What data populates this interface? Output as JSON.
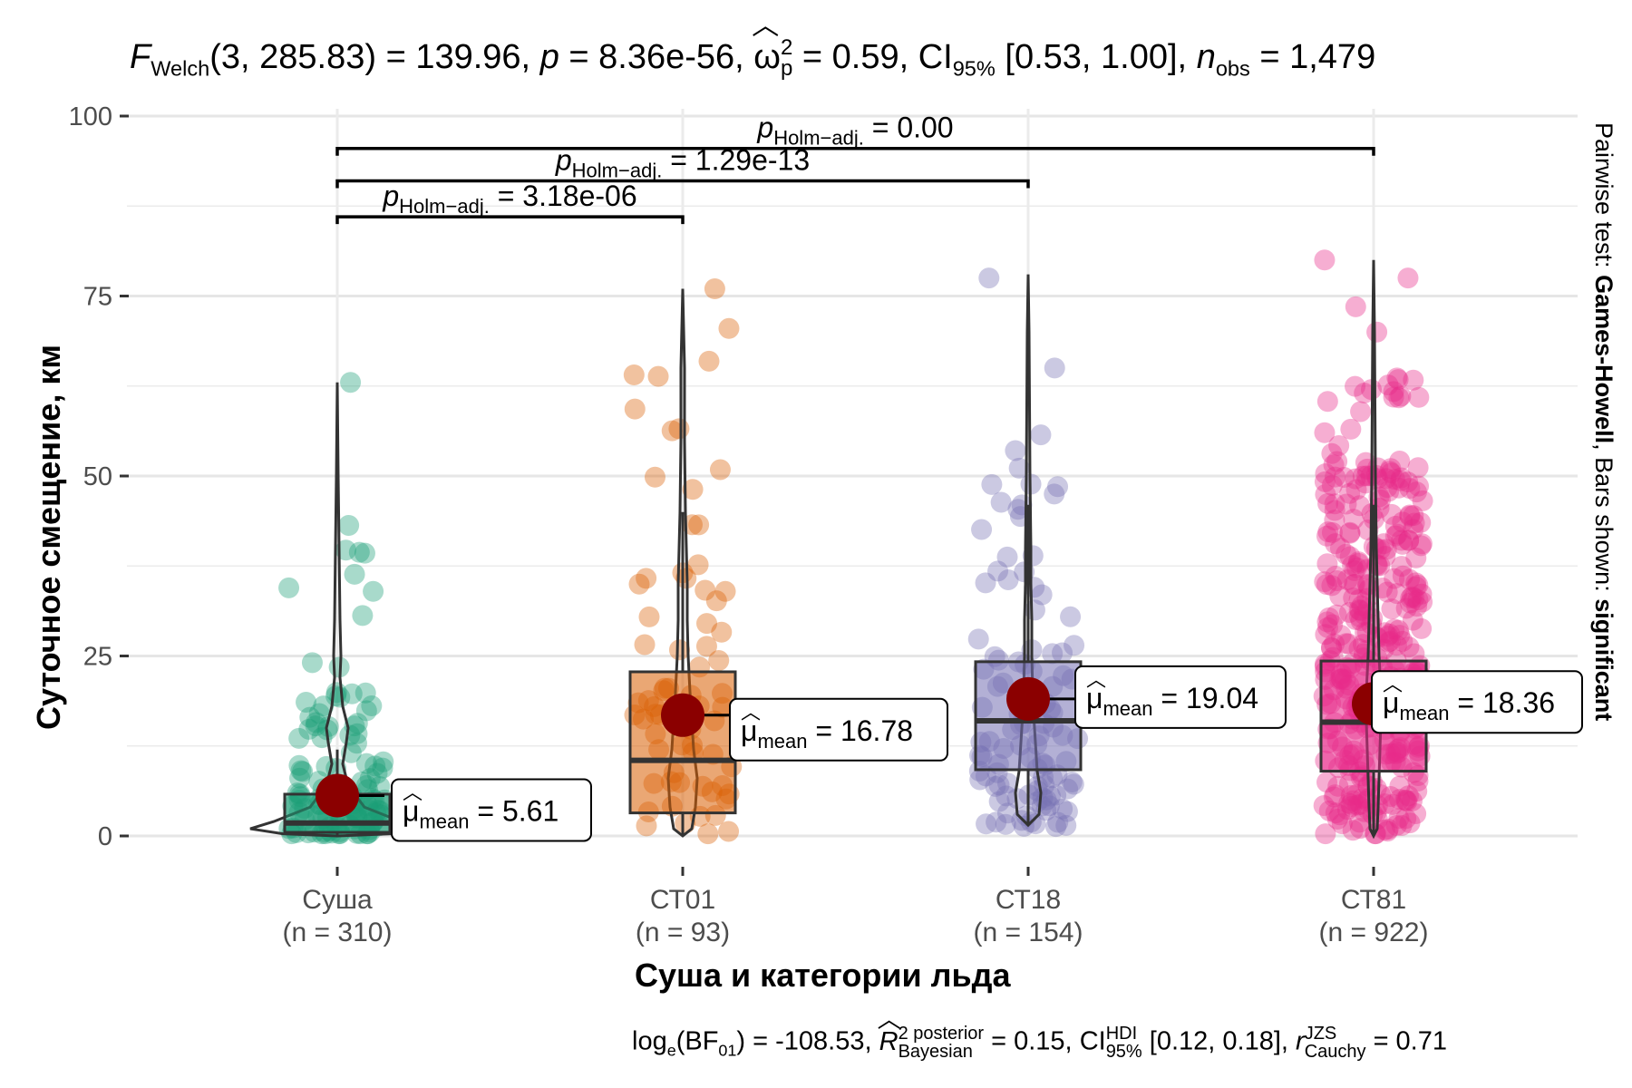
{
  "chart_data": {
    "type": "violin-box-scatter",
    "title": {
      "statistic": "F",
      "statistic_sub": "Welch",
      "df": "(3, 285.83)",
      "value": "= 139.96,",
      "p_label": "p",
      "p_value": "= 8.36e-56,",
      "effect_symbol": "ω",
      "effect_sup": "2",
      "effect_sub": "p",
      "effect_value": "= 0.59,",
      "ci_label": "CI",
      "ci_sub": "95%",
      "ci_value": "[0.53, 1.00],",
      "n_label": "n",
      "n_sub": "obs",
      "n_value": "= 1,479"
    },
    "caption": {
      "bf_label": "log",
      "bf_sub": "e",
      "bf_arg": "(BF",
      "bf_arg_sub": "01",
      "bf_value": ") = -108.53,",
      "r2_symbol": "R",
      "r2_sup": "2 posterior",
      "r2_sub": "Bayesian",
      "r2_value": "= 0.15,",
      "ci_label": "CI",
      "ci_sup": "HDI",
      "ci_sub": "95%",
      "ci_value": "[0.12, 0.18],",
      "r_symbol": "r",
      "r_sup": "JZS",
      "r_sub": "Cauchy",
      "r_value": "= 0.71"
    },
    "xlabel": "Суша и категории льда",
    "ylabel": "Суточное смещение, км",
    "side_label_prefix": "Pairwise test: ",
    "side_label_test": "Games-Howell",
    "side_label_mid": ", Bars shown: ",
    "side_label_bars": "significant",
    "ylim": [
      -4,
      100
    ],
    "yticks": [
      0,
      25,
      50,
      75,
      100
    ],
    "groups": [
      {
        "name": "Суша",
        "n_label": "(n = 310)",
        "color": "#1B9E77",
        "mean": 5.61,
        "mean_label": "= 5.61",
        "q1": 0.5,
        "median": 1.8,
        "q3": 5.8,
        "whisker_low": 0,
        "whisker_high": 12,
        "max": 63
      },
      {
        "name": "СТ01",
        "n_label": "(n = 93)",
        "color": "#D95F02",
        "mean": 16.78,
        "mean_label": "= 16.78",
        "q1": 3.2,
        "median": 10.5,
        "q3": 22.8,
        "whisker_low": 0,
        "whisker_high": 45,
        "max": 76
      },
      {
        "name": "СТ18",
        "n_label": "(n = 154)",
        "color": "#7570B3",
        "mean": 19.04,
        "mean_label": "= 19.04",
        "q1": 9.2,
        "median": 16.0,
        "q3": 24.2,
        "whisker_low": 1.5,
        "whisker_high": 46,
        "max": 78
      },
      {
        "name": "СТ81",
        "n_label": "(n = 922)",
        "color": "#E7298A",
        "mean": 18.36,
        "mean_label": "= 18.36",
        "q1": 9.0,
        "median": 15.8,
        "q3": 24.3,
        "whisker_low": 0,
        "whisker_high": 46,
        "max": 80
      }
    ],
    "mean_symbol": "μ",
    "mean_sub": "mean",
    "mean_color": "#8B0000",
    "pairwise": [
      {
        "from": 0,
        "to": 1,
        "y": 86,
        "label_sym": "p",
        "label_sub": "Holm−adj.",
        "label_value": "= 3.18e-06"
      },
      {
        "from": 0,
        "to": 2,
        "y": 91,
        "label_sym": "p",
        "label_sub": "Holm−adj.",
        "label_value": "= 1.29e-13"
      },
      {
        "from": 0,
        "to": 3,
        "y": 95.5,
        "label_sym": "p",
        "label_sub": "Holm−adj.",
        "label_value": "= 0.00"
      }
    ]
  }
}
